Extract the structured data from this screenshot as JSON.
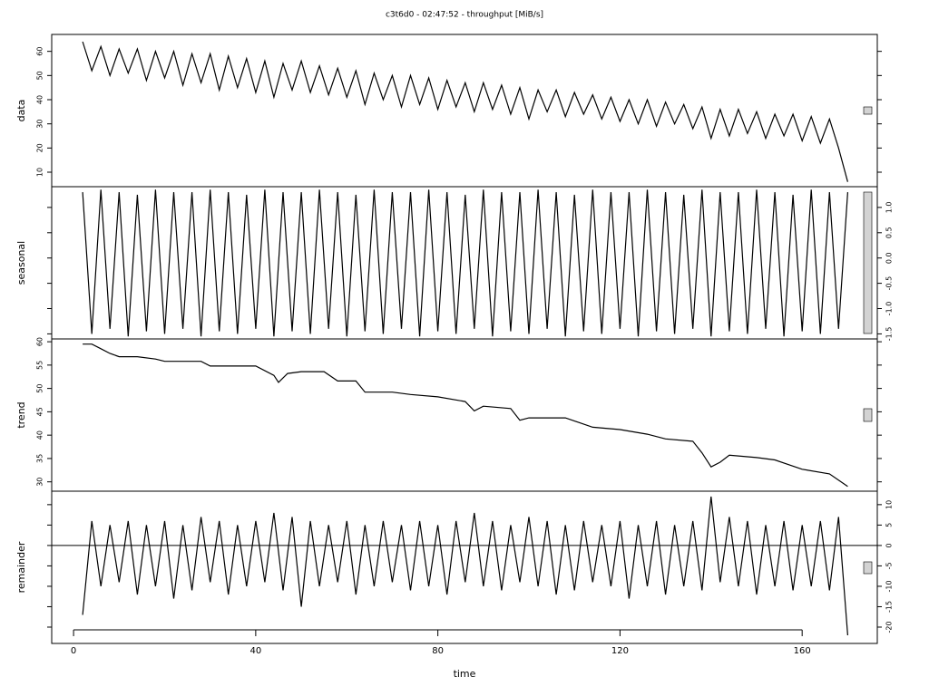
{
  "title": "c3t6d0 - 02:47:52 - throughput [MiB/s]",
  "xlabel": "time",
  "xlim": [
    -4.8,
    176.5
  ],
  "xticks": [
    0,
    40,
    80,
    120,
    160
  ],
  "chart_data": [
    {
      "type": "line",
      "ylabel": "data",
      "axis_side": "left",
      "ylim": [
        4,
        67
      ],
      "yticks": [
        10,
        20,
        30,
        40,
        50,
        60
      ],
      "x": [
        2,
        4,
        6,
        8,
        10,
        12,
        14,
        16,
        18,
        20,
        22,
        24,
        26,
        28,
        30,
        32,
        34,
        36,
        38,
        40,
        42,
        44,
        46,
        48,
        50,
        52,
        54,
        56,
        58,
        60,
        62,
        64,
        66,
        68,
        70,
        72,
        74,
        76,
        78,
        80,
        82,
        84,
        86,
        88,
        90,
        92,
        94,
        96,
        98,
        100,
        102,
        104,
        106,
        108,
        110,
        112,
        114,
        116,
        118,
        120,
        122,
        124,
        126,
        128,
        130,
        132,
        134,
        136,
        138,
        140,
        142,
        144,
        146,
        148,
        150,
        152,
        154,
        156,
        158,
        160,
        162,
        164,
        166,
        168,
        170
      ],
      "values": [
        64,
        52,
        62,
        50,
        61,
        51,
        61,
        48,
        60,
        49,
        60,
        46,
        59,
        47,
        59,
        44,
        58,
        45,
        57,
        43,
        56,
        41,
        55,
        44,
        56,
        43,
        54,
        42,
        53,
        41,
        52,
        38,
        51,
        40,
        50,
        37,
        50,
        38,
        49,
        36,
        48,
        37,
        47,
        35,
        47,
        36,
        46,
        34,
        45,
        32,
        44,
        35,
        44,
        33,
        43,
        34,
        42,
        32,
        41,
        31,
        40,
        30,
        40,
        29,
        39,
        30,
        38,
        28,
        37,
        24,
        36,
        25,
        36,
        26,
        35,
        24,
        34,
        25,
        34,
        23,
        33,
        22,
        32,
        20,
        6
      ]
    },
    {
      "type": "line",
      "ylabel": "seasonal",
      "axis_side": "right",
      "ylim": [
        -1.6,
        1.41
      ],
      "yticks": [
        {
          "value": -1.5,
          "label": "-1.5"
        },
        {
          "value": -1,
          "label": "-1.0"
        },
        -0.5,
        {
          "value": 0,
          "label": "0.0"
        },
        0.5,
        {
          "value": 1,
          "label": "1.0"
        }
      ],
      "x": [
        2,
        4,
        6,
        8,
        10,
        12,
        14,
        16,
        18,
        20,
        22,
        24,
        26,
        28,
        30,
        32,
        34,
        36,
        38,
        40,
        42,
        44,
        46,
        48,
        50,
        52,
        54,
        56,
        58,
        60,
        62,
        64,
        66,
        68,
        70,
        72,
        74,
        76,
        78,
        80,
        82,
        84,
        86,
        88,
        90,
        92,
        94,
        96,
        98,
        100,
        102,
        104,
        106,
        108,
        110,
        112,
        114,
        116,
        118,
        120,
        122,
        124,
        126,
        128,
        130,
        132,
        134,
        136,
        138,
        140,
        142,
        144,
        146,
        148,
        150,
        152,
        154,
        156,
        158,
        160,
        162,
        164,
        166,
        168,
        170
      ],
      "values": [
        1.3,
        -1.5,
        1.35,
        -1.4,
        1.3,
        -1.55,
        1.25,
        -1.45,
        1.35,
        -1.5,
        1.3,
        -1.4,
        1.3,
        -1.55,
        1.35,
        -1.45,
        1.3,
        -1.5,
        1.25,
        -1.4,
        1.35,
        -1.55,
        1.3,
        -1.45,
        1.3,
        -1.5,
        1.35,
        -1.4,
        1.3,
        -1.55,
        1.25,
        -1.45,
        1.35,
        -1.5,
        1.3,
        -1.4,
        1.3,
        -1.55,
        1.35,
        -1.45,
        1.3,
        -1.5,
        1.25,
        -1.4,
        1.35,
        -1.55,
        1.3,
        -1.45,
        1.3,
        -1.5,
        1.35,
        -1.4,
        1.3,
        -1.55,
        1.25,
        -1.45,
        1.35,
        -1.5,
        1.3,
        -1.4,
        1.3,
        -1.55,
        1.35,
        -1.45,
        1.3,
        -1.5,
        1.25,
        -1.4,
        1.35,
        -1.55,
        1.3,
        -1.45,
        1.3,
        -1.5,
        1.35,
        -1.4,
        1.3,
        -1.55,
        1.25,
        -1.45,
        1.35,
        -1.5,
        1.3,
        -1.4,
        1.3
      ]
    },
    {
      "type": "line",
      "ylabel": "trend",
      "axis_side": "left",
      "ylim": [
        28,
        60.6
      ],
      "yticks": [
        30,
        35,
        40,
        45,
        50,
        55,
        60
      ],
      "x": [
        2,
        4,
        6,
        8,
        10,
        14,
        18,
        20,
        28,
        30,
        40,
        44,
        45,
        47,
        50,
        55,
        58,
        62,
        64,
        70,
        74,
        80,
        86,
        88,
        90,
        96,
        98,
        100,
        104,
        108,
        114,
        120,
        126,
        130,
        136,
        138,
        140,
        142,
        144,
        150,
        154,
        160,
        166,
        170
      ],
      "values": [
        59.5,
        59.5,
        58.5,
        57.5,
        56.8,
        56.8,
        56.3,
        55.8,
        55.8,
        54.8,
        54.8,
        52.8,
        51.3,
        53.2,
        53.6,
        53.6,
        51.6,
        51.6,
        49.2,
        49.2,
        48.7,
        48.2,
        47.2,
        45.2,
        46.2,
        45.7,
        43.2,
        43.7,
        43.7,
        43.7,
        41.7,
        41.2,
        40.2,
        39.2,
        38.7,
        36.2,
        33.2,
        34.2,
        35.7,
        35.2,
        34.7,
        32.7,
        31.7,
        29
      ]
    },
    {
      "type": "line",
      "ylabel": "remainder",
      "axis_side": "right",
      "ylim": [
        -24,
        13.3
      ],
      "yticks": [
        -20,
        -15,
        -10,
        -5,
        0,
        5,
        10
      ],
      "hline": 0,
      "x": [
        2,
        4,
        6,
        8,
        10,
        12,
        14,
        16,
        18,
        20,
        22,
        24,
        26,
        28,
        30,
        32,
        34,
        36,
        38,
        40,
        42,
        44,
        46,
        48,
        50,
        52,
        54,
        56,
        58,
        60,
        62,
        64,
        66,
        68,
        70,
        72,
        74,
        76,
        78,
        80,
        82,
        84,
        86,
        88,
        90,
        92,
        94,
        96,
        98,
        100,
        102,
        104,
        106,
        108,
        110,
        112,
        114,
        116,
        118,
        120,
        122,
        124,
        126,
        128,
        130,
        132,
        134,
        136,
        138,
        140,
        142,
        144,
        146,
        148,
        150,
        152,
        154,
        156,
        158,
        160,
        162,
        164,
        166,
        168,
        170
      ],
      "values": [
        -17,
        6,
        -10,
        5,
        -9,
        6,
        -12,
        5,
        -10,
        6,
        -13,
        5,
        -11,
        7,
        -9,
        6,
        -12,
        5,
        -10,
        6,
        -9,
        8,
        -11,
        7,
        -15,
        6,
        -10,
        5,
        -9,
        6,
        -12,
        5,
        -10,
        6,
        -9,
        5,
        -11,
        6,
        -10,
        5,
        -12,
        6,
        -9,
        8,
        -10,
        6,
        -11,
        5,
        -9,
        7,
        -10,
        6,
        -12,
        5,
        -11,
        6,
        -9,
        5,
        -10,
        6,
        -13,
        5,
        -10,
        6,
        -12,
        5,
        -10,
        6,
        -11,
        12,
        -9,
        7,
        -10,
        6,
        -12,
        5,
        -10,
        6,
        -11,
        5,
        -10,
        6,
        -11,
        7,
        -22
      ]
    }
  ]
}
